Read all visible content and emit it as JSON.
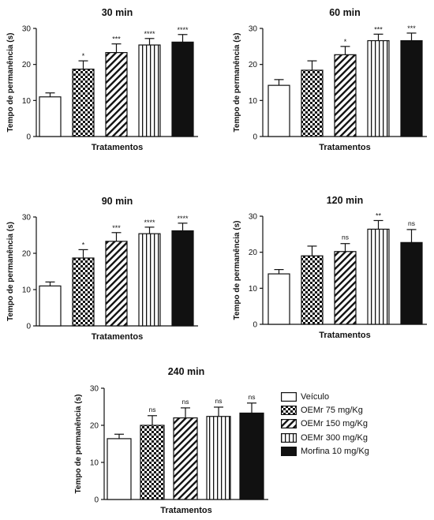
{
  "chart_data": [
    {
      "type": "bar",
      "title": "30 min",
      "xlabel": "Tratamentos",
      "ylabel": "Tempo de permanência (s)",
      "ylim": [
        0,
        30
      ],
      "yticks": [
        "0",
        "10",
        "20",
        "30"
      ],
      "categories": [
        "Veículo",
        "OEMr 75 mg/Kg",
        "OEMr 150 mg/Kg",
        "OEMr 300 mg/Kg",
        "Morfina 10 mg/Kg"
      ],
      "values": [
        11,
        18.7,
        23.3,
        25.4,
        26.2
      ],
      "errors": [
        1.1,
        2.3,
        2.4,
        1.8,
        2.1
      ],
      "significance": [
        "",
        "*",
        "***",
        "****",
        "****"
      ]
    },
    {
      "type": "bar",
      "title": "60 min",
      "xlabel": "Tratamentos",
      "ylabel": "Tempo de permanência (s)",
      "ylim": [
        0,
        30
      ],
      "yticks": [
        "0",
        "10",
        "20",
        "30"
      ],
      "categories": [
        "Veículo",
        "OEMr 75 mg/Kg",
        "OEMr 150 mg/Kg",
        "OEMr 300 mg/Kg",
        "Morfina 10 mg/Kg"
      ],
      "values": [
        14.2,
        18.4,
        22.7,
        26.6,
        26.6
      ],
      "errors": [
        1.6,
        2.6,
        2.3,
        1.8,
        2.1
      ],
      "significance": [
        "",
        "",
        "*",
        "***",
        "***"
      ]
    },
    {
      "type": "bar",
      "title": "90 min",
      "xlabel": "Tratamentos",
      "ylabel": "Tempo de permanência (s)",
      "ylim": [
        0,
        30
      ],
      "yticks": [
        "0",
        "10",
        "20",
        "30"
      ],
      "categories": [
        "Veículo",
        "OEMr 75 mg/Kg",
        "OEMr 150 mg/Kg",
        "OEMr 300 mg/Kg",
        "Morfina 10 mg/Kg"
      ],
      "values": [
        11,
        18.7,
        23.3,
        25.4,
        26.2
      ],
      "errors": [
        1.1,
        2.3,
        2.4,
        1.8,
        2.1
      ],
      "significance": [
        "",
        "*",
        "***",
        "****",
        "****"
      ]
    },
    {
      "type": "bar",
      "title": "120 min",
      "xlabel": "Tratamentos",
      "ylabel": "Tempo de permanência (s)",
      "ylim": [
        0,
        30
      ],
      "yticks": [
        "0",
        "10",
        "20",
        "30"
      ],
      "categories": [
        "Veículo",
        "OEMr 75 mg/Kg",
        "OEMr 150 mg/Kg",
        "OEMr 300 mg/Kg",
        "Morfina 10 mg/Kg"
      ],
      "values": [
        14,
        19,
        20.2,
        26.4,
        22.7
      ],
      "errors": [
        1.2,
        2.7,
        2.2,
        2.4,
        3.6
      ],
      "significance": [
        "",
        "",
        "ns",
        "**",
        "ns"
      ]
    },
    {
      "type": "bar",
      "title": "240 min",
      "xlabel": "Tratamentos",
      "ylabel": "Tempo de permanência (s)",
      "ylim": [
        0,
        30
      ],
      "yticks": [
        "0",
        "10",
        "20",
        "30"
      ],
      "categories": [
        "Veículo",
        "OEMr 75 mg/Kg",
        "OEMr 150 mg/Kg",
        "OEMr 300 mg/Kg",
        "Morfina 10 mg/Kg"
      ],
      "values": [
        16.4,
        20,
        22,
        22.4,
        23.3
      ],
      "errors": [
        1.2,
        2.6,
        2.7,
        2.5,
        2.7
      ],
      "significance": [
        "",
        "ns",
        "ns",
        "ns",
        "ns"
      ]
    }
  ],
  "legend": {
    "items": [
      {
        "label": "Veículo",
        "pattern": "open",
        "name": "legend-item-veiculo"
      },
      {
        "label": "OEMr 75 mg/Kg",
        "pattern": "checker",
        "name": "legend-item-oemr-75"
      },
      {
        "label": "OEMr 150 mg/Kg",
        "pattern": "diagonal",
        "name": "legend-item-oemr-150"
      },
      {
        "label": "OEMr 300 mg/Kg",
        "pattern": "vertical",
        "name": "legend-item-oemr-300"
      },
      {
        "label": "Morfina 10 mg/Kg",
        "pattern": "solid",
        "name": "legend-item-morfina-10"
      }
    ]
  },
  "colors": {
    "ink": "#111111",
    "background": "#ffffff"
  }
}
